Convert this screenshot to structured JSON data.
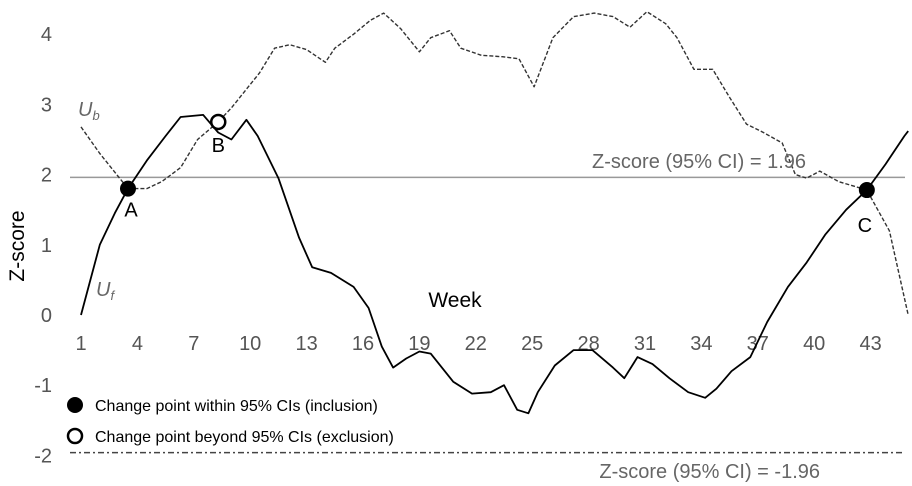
{
  "chart_data": {
    "type": "line",
    "ylabel": "Z-score",
    "xlabel": "Week",
    "x_ticks": [
      1,
      4,
      7,
      10,
      13,
      16,
      19,
      22,
      25,
      28,
      31,
      34,
      37,
      40,
      43
    ],
    "y_ticks": [
      -2,
      -1,
      0,
      1,
      2,
      3,
      4
    ],
    "xlim": [
      1,
      45
    ],
    "ylim": [
      -2,
      4.3
    ],
    "series": [
      {
        "name": "Uf",
        "style": "solid",
        "color": "#000000",
        "points": [
          [
            1,
            0
          ],
          [
            1.5,
            0.5
          ],
          [
            2,
            1.0
          ],
          [
            2.8,
            1.45
          ],
          [
            3.5,
            1.8
          ],
          [
            4.5,
            2.2
          ],
          [
            5.5,
            2.55
          ],
          [
            6.3,
            2.82
          ],
          [
            7.5,
            2.85
          ],
          [
            8.3,
            2.6
          ],
          [
            9,
            2.5
          ],
          [
            9.8,
            2.78
          ],
          [
            10.4,
            2.55
          ],
          [
            11.5,
            1.95
          ],
          [
            12.6,
            1.1
          ],
          [
            13.3,
            0.68
          ],
          [
            14.3,
            0.6
          ],
          [
            15.5,
            0.4
          ],
          [
            16.3,
            0.1
          ],
          [
            17,
            -0.45
          ],
          [
            17.6,
            -0.75
          ],
          [
            18.3,
            -0.62
          ],
          [
            19,
            -0.52
          ],
          [
            19.6,
            -0.55
          ],
          [
            20.8,
            -0.95
          ],
          [
            21.8,
            -1.12
          ],
          [
            22.8,
            -1.1
          ],
          [
            23.5,
            -1.0
          ],
          [
            24.2,
            -1.35
          ],
          [
            24.8,
            -1.4
          ],
          [
            25.3,
            -1.1
          ],
          [
            26.2,
            -0.72
          ],
          [
            27.2,
            -0.5
          ],
          [
            28.2,
            -0.5
          ],
          [
            29.3,
            -0.75
          ],
          [
            29.9,
            -0.9
          ],
          [
            30.6,
            -0.6
          ],
          [
            31.4,
            -0.7
          ],
          [
            32.3,
            -0.9
          ],
          [
            33.3,
            -1.1
          ],
          [
            34.2,
            -1.18
          ],
          [
            34.8,
            -1.05
          ],
          [
            35.6,
            -0.8
          ],
          [
            36.6,
            -0.6
          ],
          [
            37.5,
            -0.1
          ],
          [
            38.6,
            0.4
          ],
          [
            39.6,
            0.75
          ],
          [
            40.6,
            1.15
          ],
          [
            41.7,
            1.5
          ],
          [
            42.8,
            1.78
          ],
          [
            43.8,
            2.15
          ],
          [
            44.8,
            2.55
          ],
          [
            45,
            2.62
          ]
        ]
      },
      {
        "name": "Ub",
        "style": "dashed",
        "color": "#333333",
        "points": [
          [
            1,
            2.68
          ],
          [
            2,
            2.3
          ],
          [
            3.5,
            1.8
          ],
          [
            4.5,
            1.8
          ],
          [
            5.3,
            1.9
          ],
          [
            6.3,
            2.1
          ],
          [
            7.2,
            2.5
          ],
          [
            8.3,
            2.75
          ],
          [
            9,
            2.95
          ],
          [
            10.5,
            3.45
          ],
          [
            11.3,
            3.8
          ],
          [
            12.1,
            3.85
          ],
          [
            13,
            3.78
          ],
          [
            14,
            3.6
          ],
          [
            14.5,
            3.8
          ],
          [
            15.5,
            4.0
          ],
          [
            16.4,
            4.2
          ],
          [
            17.1,
            4.3
          ],
          [
            18,
            4.08
          ],
          [
            19,
            3.75
          ],
          [
            19.6,
            3.95
          ],
          [
            20.6,
            4.05
          ],
          [
            21.2,
            3.8
          ],
          [
            22.3,
            3.7
          ],
          [
            23.4,
            3.68
          ],
          [
            24.3,
            3.65
          ],
          [
            25.1,
            3.25
          ],
          [
            26.1,
            3.95
          ],
          [
            27.2,
            4.25
          ],
          [
            28.3,
            4.3
          ],
          [
            29.3,
            4.25
          ],
          [
            30.2,
            4.1
          ],
          [
            31.1,
            4.32
          ],
          [
            32.1,
            4.15
          ],
          [
            32.7,
            3.95
          ],
          [
            33.6,
            3.5
          ],
          [
            34.6,
            3.5
          ],
          [
            35.5,
            3.1
          ],
          [
            36.4,
            2.72
          ],
          [
            37.3,
            2.6
          ],
          [
            38.3,
            2.45
          ],
          [
            39,
            2.0
          ],
          [
            39.6,
            1.95
          ],
          [
            40.3,
            2.05
          ],
          [
            41.3,
            1.9
          ],
          [
            42.8,
            1.78
          ],
          [
            44,
            1.2
          ],
          [
            45,
            0
          ]
        ]
      }
    ],
    "series_labels": [
      {
        "base": "U",
        "sub": "b"
      },
      {
        "base": "U",
        "sub": "f"
      }
    ],
    "reference_lines": [
      {
        "y": 1.96,
        "label": "Z-score (95% CI) = 1.96",
        "color": "#999999",
        "style": "solid"
      },
      {
        "y": -1.96,
        "label": "Z-score (95% CI) = -1.96",
        "color": "#444444",
        "style": "dashdot"
      }
    ],
    "change_points": [
      {
        "label": "A",
        "x": 3.5,
        "y": 1.8,
        "type": "inclusion"
      },
      {
        "label": "B",
        "x": 8.3,
        "y": 2.75,
        "type": "exclusion"
      },
      {
        "label": "C",
        "x": 42.8,
        "y": 1.78,
        "type": "inclusion"
      }
    ],
    "legend": {
      "position": "bottom-left",
      "items": [
        {
          "marker": "filled-circle",
          "label": "Change point within 95% CIs (inclusion)"
        },
        {
          "marker": "open-circle",
          "label": "Change point beyond 95% CIs (exclusion)"
        }
      ]
    }
  }
}
